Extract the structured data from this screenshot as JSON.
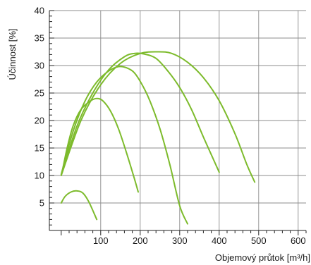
{
  "chart_data": {
    "type": "line",
    "title": "",
    "xlabel": "Objemový průtok [m³/h]",
    "ylabel": "Účinnost [%]",
    "xlim": [
      -30,
      620
    ],
    "ylim": [
      0,
      40
    ],
    "x_ticks": [
      100,
      200,
      300,
      400,
      500,
      600
    ],
    "y_ticks": [
      5,
      10,
      15,
      20,
      25,
      30,
      35,
      40
    ],
    "grid": true,
    "line_color": "#7dbb2c",
    "series": [
      {
        "points": [
          [
            0,
            5
          ],
          [
            10,
            6.2
          ],
          [
            25,
            7
          ],
          [
            40,
            7.2
          ],
          [
            55,
            6.8
          ],
          [
            70,
            5.2
          ],
          [
            90,
            2
          ]
        ]
      },
      {
        "points": [
          [
            2,
            10.5
          ],
          [
            15,
            15
          ],
          [
            30,
            19
          ],
          [
            50,
            22
          ],
          [
            75,
            23.6
          ],
          [
            90,
            24
          ],
          [
            105,
            23.6
          ],
          [
            125,
            21.7
          ],
          [
            145,
            18.5
          ],
          [
            165,
            14.2
          ],
          [
            185,
            9.5
          ],
          [
            195,
            7
          ]
        ]
      },
      {
        "points": [
          [
            0,
            10.2
          ],
          [
            30,
            18
          ],
          [
            60,
            23.5
          ],
          [
            90,
            27
          ],
          [
            120,
            29
          ],
          [
            145,
            29.8
          ],
          [
            165,
            29.6
          ],
          [
            185,
            28.7
          ],
          [
            205,
            26.5
          ],
          [
            225,
            23.5
          ],
          [
            250,
            18.5
          ],
          [
            275,
            12
          ],
          [
            300,
            4.5
          ],
          [
            320,
            1.2
          ]
        ]
      },
      {
        "points": [
          [
            2,
            10.5
          ],
          [
            40,
            19
          ],
          [
            80,
            25
          ],
          [
            120,
            29.2
          ],
          [
            160,
            31.6
          ],
          [
            185,
            32.2
          ],
          [
            210,
            32.1
          ],
          [
            240,
            31.3
          ],
          [
            270,
            29
          ],
          [
            300,
            26
          ],
          [
            330,
            22
          ],
          [
            360,
            17
          ],
          [
            385,
            13
          ],
          [
            400,
            10.6
          ]
        ]
      },
      {
        "points": [
          [
            0,
            10
          ],
          [
            50,
            20
          ],
          [
            100,
            26.5
          ],
          [
            150,
            30.4
          ],
          [
            200,
            32.2
          ],
          [
            245,
            32.5
          ],
          [
            280,
            32.2
          ],
          [
            320,
            30.6
          ],
          [
            360,
            27.8
          ],
          [
            400,
            23.6
          ],
          [
            440,
            17.6
          ],
          [
            470,
            12
          ],
          [
            490,
            8.8
          ]
        ]
      }
    ]
  }
}
